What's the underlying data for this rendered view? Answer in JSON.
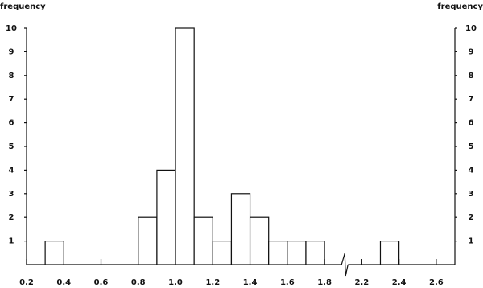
{
  "chart_data": {
    "type": "histogram",
    "y_label": "frequency",
    "bins": [
      0.3,
      0.4,
      0.5,
      0.6,
      0.7,
      0.8,
      0.9,
      1.0,
      1.1,
      1.2,
      1.3,
      1.4,
      1.5,
      1.6,
      1.7,
      1.8,
      1.9,
      2.1,
      2.2,
      2.3,
      2.4
    ],
    "values": [
      1,
      0,
      0,
      0,
      0,
      2,
      4,
      10,
      2,
      1,
      3,
      2,
      1,
      1,
      1,
      0,
      0,
      0,
      0,
      1
    ],
    "color": "#ffffff",
    "edge_color": "#111111",
    "xlim": [
      0.2,
      2.7
    ],
    "xbreak": [
      1.9,
      2.1
    ],
    "xticks": [
      0.2,
      0.4,
      0.6,
      0.8,
      {
        "value": 1.0,
        "label": "1.0"
      },
      1.2,
      1.4,
      1.6,
      1.8,
      2.2,
      2.4,
      2.6
    ],
    "ylim": [
      0,
      10
    ],
    "yticks": [
      1,
      2,
      3,
      4,
      5,
      6,
      7,
      8,
      9,
      10
    ]
  }
}
